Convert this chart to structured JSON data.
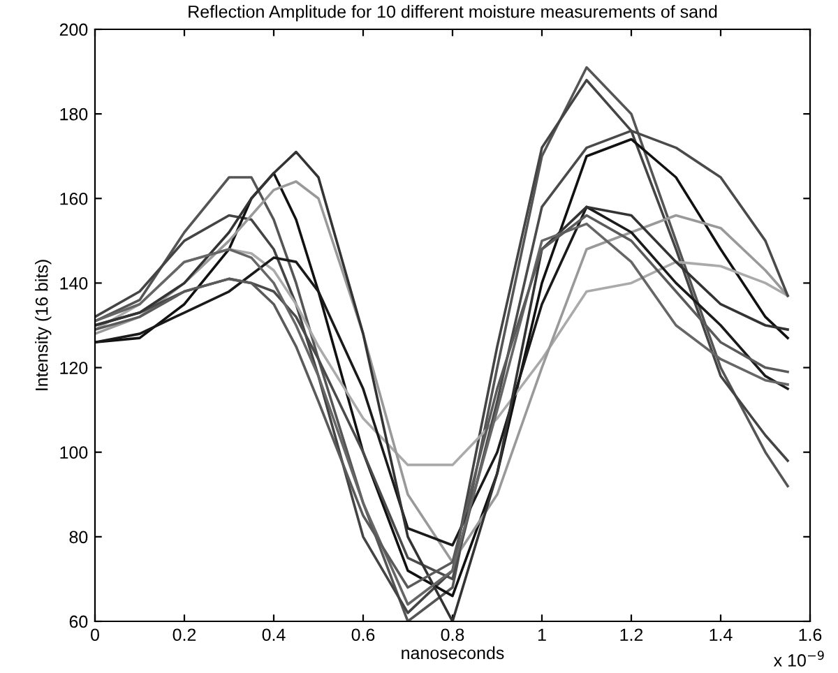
{
  "chart_data": {
    "type": "line",
    "title": "Reflection Amplitude for 10 different moisture measurements of sand",
    "xlabel": "nanoseconds",
    "ylabel": "Intensity (16 bits)",
    "annotations": [
      "x 10$^{−9}$"
    ],
    "x": [
      0,
      0.1,
      0.2,
      0.3,
      0.35,
      0.4,
      0.45,
      0.5,
      0.6,
      0.7,
      0.8,
      0.9,
      1.0,
      1.1,
      1.2,
      1.3,
      1.4,
      1.5,
      1.55
    ],
    "series": [
      {
        "color": "#555555",
        "values": [
          131,
          136,
          152,
          165,
          165,
          155,
          140,
          122,
          88,
          60,
          68,
          120,
          170,
          191,
          180,
          150,
          120,
          100,
          92
        ]
      },
      {
        "color": "#444444",
        "values": [
          132,
          138,
          150,
          156,
          155,
          148,
          135,
          118,
          80,
          62,
          72,
          125,
          172,
          188,
          176,
          148,
          118,
          104,
          98
        ]
      },
      {
        "color": "#111111",
        "values": [
          126,
          127,
          135,
          148,
          160,
          166,
          155,
          138,
          100,
          72,
          66,
          95,
          140,
          170,
          174,
          165,
          148,
          132,
          127
        ]
      },
      {
        "color": "#aaaaaa",
        "values": [
          129,
          135,
          145,
          148,
          147,
          143,
          135,
          125,
          108,
          97,
          97,
          108,
          122,
          138,
          140,
          145,
          144,
          140,
          137
        ]
      },
      {
        "color": "#999999",
        "values": [
          128,
          132,
          140,
          150,
          156,
          162,
          164,
          160,
          128,
          90,
          74,
          90,
          120,
          148,
          152,
          156,
          153,
          143,
          137
        ]
      },
      {
        "color": "#4a4a4a",
        "values": [
          130,
          133,
          138,
          141,
          140,
          138,
          132,
          122,
          100,
          75,
          70,
          112,
          158,
          172,
          176,
          172,
          165,
          150,
          137
        ]
      },
      {
        "color": "#1a1a1a",
        "values": [
          126,
          128,
          133,
          138,
          142,
          146,
          145,
          138,
          115,
          82,
          78,
          100,
          135,
          158,
          152,
          140,
          130,
          118,
          115
        ]
      },
      {
        "color": "#333333",
        "values": [
          130,
          133,
          140,
          152,
          160,
          166,
          171,
          165,
          128,
          80,
          60,
          95,
          148,
          158,
          156,
          145,
          135,
          130,
          129
        ]
      },
      {
        "color": "#666666",
        "values": [
          131,
          135,
          145,
          148,
          146,
          140,
          130,
          118,
          88,
          64,
          72,
          110,
          150,
          154,
          145,
          130,
          122,
          117,
          116
        ]
      },
      {
        "color": "#5a5a5a",
        "values": [
          129,
          132,
          138,
          141,
          140,
          135,
          125,
          112,
          85,
          68,
          74,
          115,
          148,
          156,
          150,
          138,
          126,
          120,
          119
        ]
      }
    ],
    "xlim": [
      0,
      1.6
    ],
    "ylim": [
      60,
      200
    ],
    "xticks": [
      0,
      0.2,
      0.4,
      0.6,
      0.8,
      1,
      1.2,
      1.4,
      1.6
    ],
    "yticks": [
      60,
      80,
      100,
      120,
      140,
      160,
      180,
      200
    ],
    "grid": false,
    "legend": false,
    "marker": "none",
    "line_style": "solid"
  }
}
